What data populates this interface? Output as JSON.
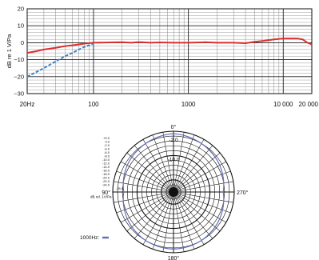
{
  "chart_data": [
    {
      "type": "line",
      "ylabel": "dB re 1 V/Pa",
      "xscale": "log",
      "xlim": [
        20,
        20000
      ],
      "ylim": [
        -30,
        20
      ],
      "x_tick_labels": [
        "20Hz",
        "100",
        "1000",
        "10 000",
        "20 000"
      ],
      "x_tick_values": [
        20,
        100,
        1000,
        10000,
        20000
      ],
      "y_tick_values": [
        20,
        10,
        0,
        -10,
        -20,
        -30
      ],
      "y_tick_labels": [
        "20",
        "10",
        "0",
        "−10",
        "−20",
        "−30"
      ],
      "grid": true,
      "series": [
        {
          "color": "#d93030",
          "style": "solid",
          "x": [
            20,
            25,
            30,
            40,
            50,
            60,
            70,
            80,
            100,
            150,
            200,
            250,
            300,
            400,
            500,
            700,
            1000,
            1500,
            2000,
            3000,
            4000,
            5000,
            6000,
            7000,
            8000,
            10000,
            12000,
            14000,
            16000,
            18000,
            20000
          ],
          "y": [
            -6,
            -5,
            -4,
            -3,
            -2,
            -1.5,
            -1,
            -0.5,
            0,
            0.2,
            0.3,
            0,
            0.4,
            0,
            0.2,
            0,
            0,
            0.3,
            0,
            0,
            -0.3,
            0.5,
            1,
            1.5,
            2,
            2.5,
            2.5,
            2.5,
            2,
            0,
            -1
          ]
        },
        {
          "color": "#3a82c8",
          "style": "dashed",
          "x": [
            20,
            30,
            40,
            50,
            60,
            70,
            80,
            100
          ],
          "y": [
            -20,
            -15,
            -11,
            -8,
            -6,
            -4,
            -2.5,
            -0.5
          ]
        }
      ]
    },
    {
      "type": "polar",
      "angle_labels": [
        "0°",
        "90°",
        "180°",
        "270°"
      ],
      "ring_labels": [
        "-2.0",
        "-10.0"
      ],
      "scale_labels": [
        "+5.0",
        "0.0",
        "-2.0",
        "-4.0",
        "-6.0",
        "-8.0",
        "-10.0",
        "-12.0",
        "-14.0",
        "-16.0",
        "-18.0",
        "-20.0",
        "-22.0",
        "-24.0",
        "-25.0"
      ],
      "scale_unit": "dB rel. 1V/Pa",
      "legend": [
        {
          "label": "1000Hz:",
          "color": "#6670b8"
        }
      ],
      "series": [
        {
          "name": "1000Hz",
          "color": "#6670b8",
          "angles_deg": [
            0,
            30,
            60,
            90,
            120,
            150,
            180,
            210,
            240,
            270,
            300,
            330
          ],
          "values_db": [
            -1,
            -2,
            -3,
            -4.5,
            -3,
            -2,
            -1.5,
            -2,
            -3,
            -4.5,
            -3,
            -2
          ]
        }
      ]
    }
  ]
}
